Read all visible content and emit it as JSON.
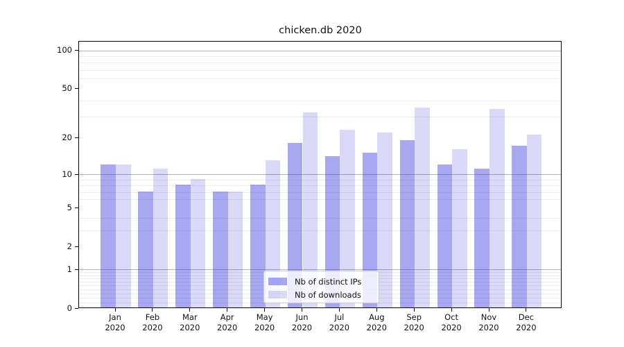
{
  "figure": {
    "title": "chicken.db 2020"
  },
  "chart_data": {
    "type": "bar",
    "title": "chicken.db 2020",
    "xlabel": "",
    "ylabel": "",
    "yscale": "log1p",
    "ylim": [
      0,
      117
    ],
    "grid": true,
    "categories": [
      "Jan 2020",
      "Feb 2020",
      "Mar 2020",
      "Apr 2020",
      "May 2020",
      "Jun 2020",
      "Jul 2020",
      "Aug 2020",
      "Sep 2020",
      "Oct 2020",
      "Nov 2020",
      "Dec 2020"
    ],
    "series": [
      {
        "name": "Nb of distinct IPs",
        "color": "#a8a8f0",
        "fill_rgba": "rgba(38,38,218,0.40)",
        "values": [
          12,
          7,
          8,
          7,
          8,
          18,
          14,
          15,
          19,
          12,
          11,
          17
        ]
      },
      {
        "name": "Nb of downloads",
        "color": "#dadaf8",
        "fill_rgba": "rgba(8,8,208,0.15)",
        "values": [
          12,
          11,
          9,
          7,
          13,
          32,
          23,
          22,
          35,
          16,
          34,
          21
        ]
      }
    ],
    "yticks": [
      100,
      50,
      20,
      10,
      5,
      2,
      1,
      0
    ],
    "major_gridlines_at": [
      1,
      10,
      100
    ],
    "minor_gridlines_at": [
      0.1,
      0.2,
      0.3,
      0.4,
      0.5,
      0.6,
      0.7,
      0.8,
      0.9,
      3,
      4,
      6,
      7,
      8,
      9,
      30,
      40,
      60,
      70,
      80,
      90
    ],
    "legend_position": "lower center inside axes"
  },
  "colors": {
    "background": "#ffffff",
    "bar_distinct_ips": "#a8a8f0",
    "bar_downloads": "#dadaf8",
    "major_grid": "#b4b4b4",
    "minor_grid": "#ebebeb",
    "spine": "#000000",
    "text": "#111111"
  }
}
